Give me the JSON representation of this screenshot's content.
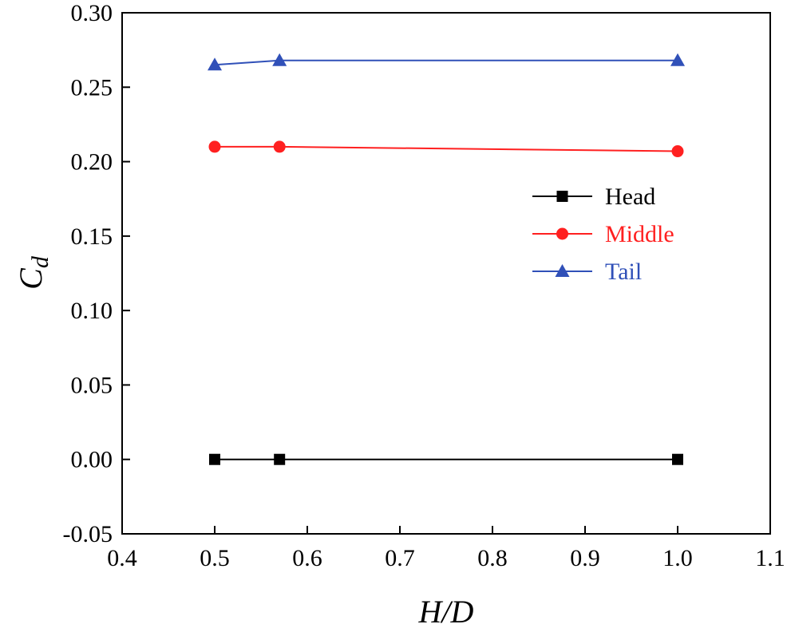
{
  "chart_data": {
    "type": "line",
    "title": "",
    "xlabel": "H/D",
    "ylabel_main": "C",
    "ylabel_sub": "d",
    "xlim": [
      0.4,
      1.1
    ],
    "ylim": [
      -0.05,
      0.3
    ],
    "xticks": [
      0.4,
      0.5,
      0.6,
      0.7,
      0.8,
      0.9,
      1.0,
      1.1
    ],
    "yticks": [
      -0.05,
      0.0,
      0.05,
      0.1,
      0.15,
      0.2,
      0.25,
      0.3
    ],
    "xtick_labels": [
      "0.4",
      "0.5",
      "0.6",
      "0.7",
      "0.8",
      "0.9",
      "1.0",
      "1.1"
    ],
    "ytick_labels": [
      "-0.05",
      "0.00",
      "0.05",
      "0.10",
      "0.15",
      "0.20",
      "0.25",
      "0.30"
    ],
    "grid": false,
    "legend_position": "right-middle",
    "series": [
      {
        "name": "Head",
        "marker": "square",
        "color": "#000000",
        "x": [
          0.5,
          0.57,
          1.0
        ],
        "y": [
          0.0,
          0.0,
          0.0
        ]
      },
      {
        "name": "Middle",
        "marker": "circle",
        "color": "#ff2020",
        "x": [
          0.5,
          0.57,
          1.0
        ],
        "y": [
          0.21,
          0.21,
          0.207
        ]
      },
      {
        "name": "Tail",
        "marker": "triangle",
        "color": "#3050b8",
        "x": [
          0.5,
          0.57,
          1.0
        ],
        "y": [
          0.265,
          0.268,
          0.268
        ]
      }
    ]
  }
}
